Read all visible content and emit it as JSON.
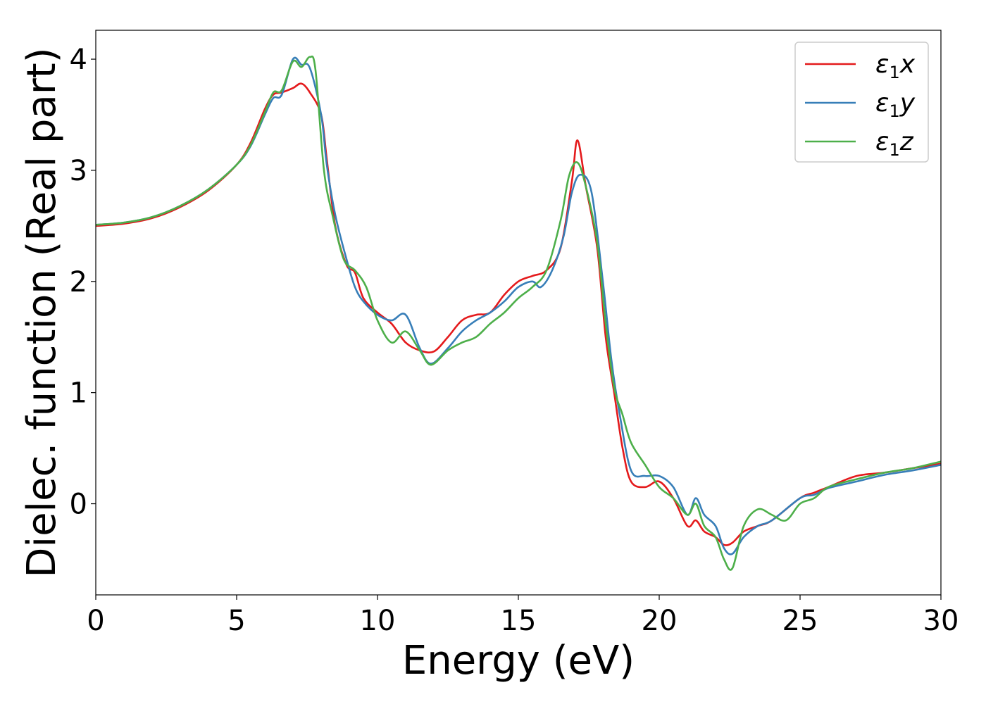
{
  "chart_data": {
    "type": "line",
    "xlabel": "Energy (eV)",
    "ylabel": "Dielec. function (Real part)",
    "xlim": [
      0,
      30
    ],
    "ylim": [
      -0.82,
      4.26
    ],
    "xticks": [
      0,
      5,
      10,
      15,
      20,
      25,
      30
    ],
    "yticks": [
      0,
      1,
      2,
      3,
      4
    ],
    "grid": false,
    "legend_position": "top-right",
    "series": [
      {
        "name": "ε1x",
        "label_base": "ε",
        "label_sub": "1",
        "label_tail": "x",
        "color": "#e41a1c",
        "x": [
          0,
          1,
          2,
          3,
          4,
          5,
          5.5,
          6,
          6.3,
          6.6,
          7,
          7.3,
          7.6,
          8,
          8.2,
          8.5,
          8.9,
          9.2,
          9.5,
          10,
          10.5,
          11,
          11.5,
          12,
          12.5,
          13,
          13.5,
          14,
          14.5,
          15,
          15.5,
          16,
          16.5,
          16.9,
          17.1,
          17.4,
          17.8,
          18.1,
          18.4,
          18.7,
          19,
          19.5,
          20,
          20.5,
          21,
          21.3,
          21.6,
          22,
          22.3,
          22.6,
          23,
          23.5,
          24,
          25,
          25.5,
          26,
          27,
          28,
          29,
          30
        ],
        "y": [
          2.5,
          2.52,
          2.57,
          2.67,
          2.82,
          3.05,
          3.25,
          3.55,
          3.68,
          3.7,
          3.74,
          3.78,
          3.7,
          3.5,
          3.1,
          2.5,
          2.15,
          2.08,
          1.85,
          1.72,
          1.62,
          1.45,
          1.38,
          1.37,
          1.5,
          1.65,
          1.7,
          1.72,
          1.88,
          2.0,
          2.05,
          2.1,
          2.3,
          2.9,
          3.27,
          2.85,
          2.3,
          1.5,
          1.0,
          0.5,
          0.2,
          0.15,
          0.2,
          0.05,
          -0.2,
          -0.15,
          -0.25,
          -0.3,
          -0.37,
          -0.35,
          -0.25,
          -0.2,
          -0.15,
          0.05,
          0.1,
          0.15,
          0.25,
          0.28,
          0.32,
          0.36
        ]
      },
      {
        "name": "ε1y",
        "label_base": "ε",
        "label_sub": "1",
        "label_tail": "y",
        "color": "#377eb8",
        "x": [
          0,
          1,
          2,
          3,
          4,
          5,
          5.5,
          6,
          6.3,
          6.6,
          7,
          7.3,
          7.6,
          8,
          8.2,
          8.5,
          8.9,
          9.2,
          9.5,
          10,
          10.5,
          11,
          11.5,
          11.9,
          12.5,
          13,
          13.5,
          14,
          14.5,
          15,
          15.5,
          15.8,
          16.2,
          16.6,
          16.9,
          17.2,
          17.6,
          18,
          18.3,
          18.6,
          19,
          19.5,
          20,
          20.5,
          21,
          21.3,
          21.6,
          22,
          22.3,
          22.6,
          23,
          23.5,
          24,
          25,
          25.5,
          26,
          27,
          28,
          29,
          30
        ],
        "y": [
          2.51,
          2.53,
          2.58,
          2.68,
          2.83,
          3.05,
          3.22,
          3.5,
          3.65,
          3.68,
          4.0,
          3.95,
          3.92,
          3.5,
          3.05,
          2.6,
          2.2,
          1.95,
          1.82,
          1.7,
          1.65,
          1.7,
          1.4,
          1.26,
          1.4,
          1.55,
          1.65,
          1.72,
          1.82,
          1.95,
          2.0,
          1.95,
          2.1,
          2.4,
          2.8,
          2.96,
          2.8,
          2.0,
          1.3,
          0.8,
          0.3,
          0.25,
          0.25,
          0.15,
          -0.1,
          0.05,
          -0.1,
          -0.2,
          -0.4,
          -0.45,
          -0.3,
          -0.2,
          -0.15,
          0.05,
          0.08,
          0.14,
          0.2,
          0.26,
          0.3,
          0.35
        ]
      },
      {
        "name": "ε1z",
        "label_base": "ε",
        "label_sub": "1",
        "label_tail": "z",
        "color": "#4daf4a",
        "x": [
          0,
          1,
          2,
          3,
          4,
          5,
          5.5,
          6,
          6.3,
          6.6,
          7,
          7.3,
          7.6,
          7.8,
          8.1,
          8.4,
          8.8,
          9.2,
          9.6,
          10,
          10.5,
          11,
          11.5,
          11.9,
          12.5,
          13,
          13.5,
          14,
          14.5,
          15,
          15.5,
          16,
          16.5,
          16.8,
          17.1,
          17.4,
          17.8,
          18.1,
          18.4,
          18.7,
          19,
          19.5,
          20,
          20.5,
          21,
          21.3,
          21.6,
          22,
          22.3,
          22.6,
          23,
          23.5,
          24,
          24.5,
          25,
          25.5,
          26,
          27,
          28,
          29,
          30
        ],
        "y": [
          2.51,
          2.53,
          2.58,
          2.68,
          2.83,
          3.05,
          3.23,
          3.52,
          3.7,
          3.72,
          3.98,
          3.93,
          4.02,
          3.9,
          3.0,
          2.6,
          2.2,
          2.1,
          1.95,
          1.65,
          1.45,
          1.55,
          1.38,
          1.25,
          1.38,
          1.45,
          1.5,
          1.62,
          1.72,
          1.85,
          1.95,
          2.1,
          2.55,
          2.95,
          3.07,
          2.85,
          2.35,
          1.62,
          1.05,
          0.8,
          0.55,
          0.35,
          0.15,
          0.05,
          -0.1,
          0.0,
          -0.2,
          -0.3,
          -0.5,
          -0.58,
          -0.2,
          -0.05,
          -0.1,
          -0.15,
          0.0,
          0.05,
          0.15,
          0.22,
          0.28,
          0.32,
          0.38
        ]
      }
    ]
  }
}
